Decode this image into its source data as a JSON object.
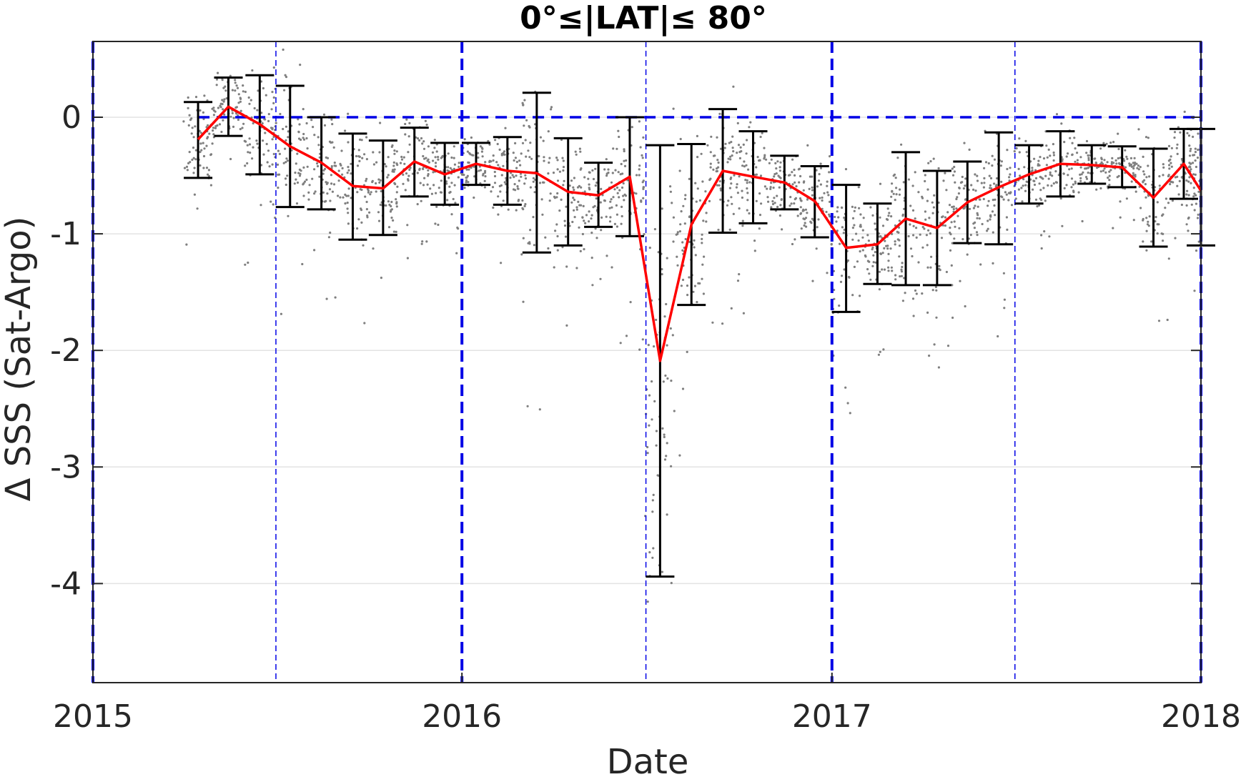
{
  "chart_data": {
    "type": "scatter",
    "title": "0°≤|LAT|≤ 80°",
    "xlabel": "Date",
    "ylabel": "Δ SSS (Sat-Argo)",
    "xlim": [
      "2015-01-01",
      "2018-01-01"
    ],
    "ylim": [
      -4.85,
      0.65
    ],
    "x_ticks": [
      {
        "value": "2015-01-01",
        "label": "2015"
      },
      {
        "value": "2016-01-01",
        "label": "2016"
      },
      {
        "value": "2017-01-01",
        "label": "2017"
      },
      {
        "value": "2018-01-01",
        "label": "2018"
      }
    ],
    "y_ticks": [
      {
        "value": 0,
        "label": "0"
      },
      {
        "value": -1,
        "label": "-1"
      },
      {
        "value": -2,
        "label": "-2"
      },
      {
        "value": -3,
        "label": "-3"
      },
      {
        "value": -4,
        "label": "-4"
      }
    ],
    "grid": true,
    "reference_line": {
      "y": 0,
      "style": "dashed",
      "color": "#0000e6"
    },
    "year_lines": [
      "2015-01-01",
      "2016-01-01",
      "2017-01-01",
      "2018-01-01"
    ],
    "half_year_lines": [
      "2015-07-01",
      "2016-07-01",
      "2017-07-01"
    ],
    "monthly_series": {
      "color": "#ff0000",
      "points": [
        {
          "date": "2015-04-15",
          "mean": -0.19,
          "low": -0.52,
          "high": 0.13
        },
        {
          "date": "2015-05-15",
          "mean": 0.09,
          "low": -0.16,
          "high": 0.34
        },
        {
          "date": "2015-06-15",
          "mean": -0.06,
          "low": -0.49,
          "high": 0.36
        },
        {
          "date": "2015-07-15",
          "mean": -0.25,
          "low": -0.77,
          "high": 0.27
        },
        {
          "date": "2015-08-15",
          "mean": -0.39,
          "low": -0.79,
          "high": 0.0
        },
        {
          "date": "2015-09-15",
          "mean": -0.59,
          "low": -1.05,
          "high": -0.14
        },
        {
          "date": "2015-10-15",
          "mean": -0.61,
          "low": -1.01,
          "high": -0.2
        },
        {
          "date": "2015-11-15",
          "mean": -0.38,
          "low": -0.68,
          "high": -0.09
        },
        {
          "date": "2015-12-15",
          "mean": -0.49,
          "low": -0.75,
          "high": -0.22
        },
        {
          "date": "2016-01-15",
          "mean": -0.4,
          "low": -0.58,
          "high": -0.22
        },
        {
          "date": "2016-02-15",
          "mean": -0.46,
          "low": -0.75,
          "high": -0.17
        },
        {
          "date": "2016-03-15",
          "mean": -0.48,
          "low": -1.16,
          "high": 0.21
        },
        {
          "date": "2016-04-15",
          "mean": -0.64,
          "low": -1.1,
          "high": -0.18
        },
        {
          "date": "2016-05-15",
          "mean": -0.67,
          "low": -0.94,
          "high": -0.39
        },
        {
          "date": "2016-06-15",
          "mean": -0.51,
          "low": -1.02,
          "high": 0.0
        },
        {
          "date": "2016-07-15",
          "mean": -2.09,
          "low": -3.94,
          "high": -0.24
        },
        {
          "date": "2016-08-15",
          "mean": -0.92,
          "low": -1.61,
          "high": -0.23
        },
        {
          "date": "2016-09-15",
          "mean": -0.46,
          "low": -0.99,
          "high": 0.07
        },
        {
          "date": "2016-10-15",
          "mean": -0.51,
          "low": -0.91,
          "high": -0.12
        },
        {
          "date": "2016-11-15",
          "mean": -0.56,
          "low": -0.79,
          "high": -0.33
        },
        {
          "date": "2016-12-15",
          "mean": -0.72,
          "low": -1.03,
          "high": -0.42
        },
        {
          "date": "2017-01-15",
          "mean": -1.12,
          "low": -1.67,
          "high": -0.58
        },
        {
          "date": "2017-02-15",
          "mean": -1.09,
          "low": -1.43,
          "high": -0.74
        },
        {
          "date": "2017-03-15",
          "mean": -0.87,
          "low": -1.44,
          "high": -0.3
        },
        {
          "date": "2017-04-15",
          "mean": -0.95,
          "low": -1.44,
          "high": -0.46
        },
        {
          "date": "2017-05-15",
          "mean": -0.73,
          "low": -1.08,
          "high": -0.38
        },
        {
          "date": "2017-06-15",
          "mean": -0.6,
          "low": -1.09,
          "high": -0.13
        },
        {
          "date": "2017-07-15",
          "mean": -0.49,
          "low": -0.74,
          "high": -0.24
        },
        {
          "date": "2017-08-15",
          "mean": -0.4,
          "low": -0.68,
          "high": -0.12
        },
        {
          "date": "2017-09-15",
          "mean": -0.41,
          "low": -0.57,
          "high": -0.24
        },
        {
          "date": "2017-10-15",
          "mean": -0.43,
          "low": -0.6,
          "high": -0.25
        },
        {
          "date": "2017-11-15",
          "mean": -0.69,
          "low": -1.11,
          "high": -0.27
        },
        {
          "date": "2017-12-15",
          "mean": -0.4,
          "low": -0.7,
          "high": -0.1
        },
        {
          "date": "2018-01-01",
          "mean": -0.63,
          "low": -1.1,
          "high": -0.1
        }
      ]
    },
    "scatter_color": "#7f7f7f"
  }
}
